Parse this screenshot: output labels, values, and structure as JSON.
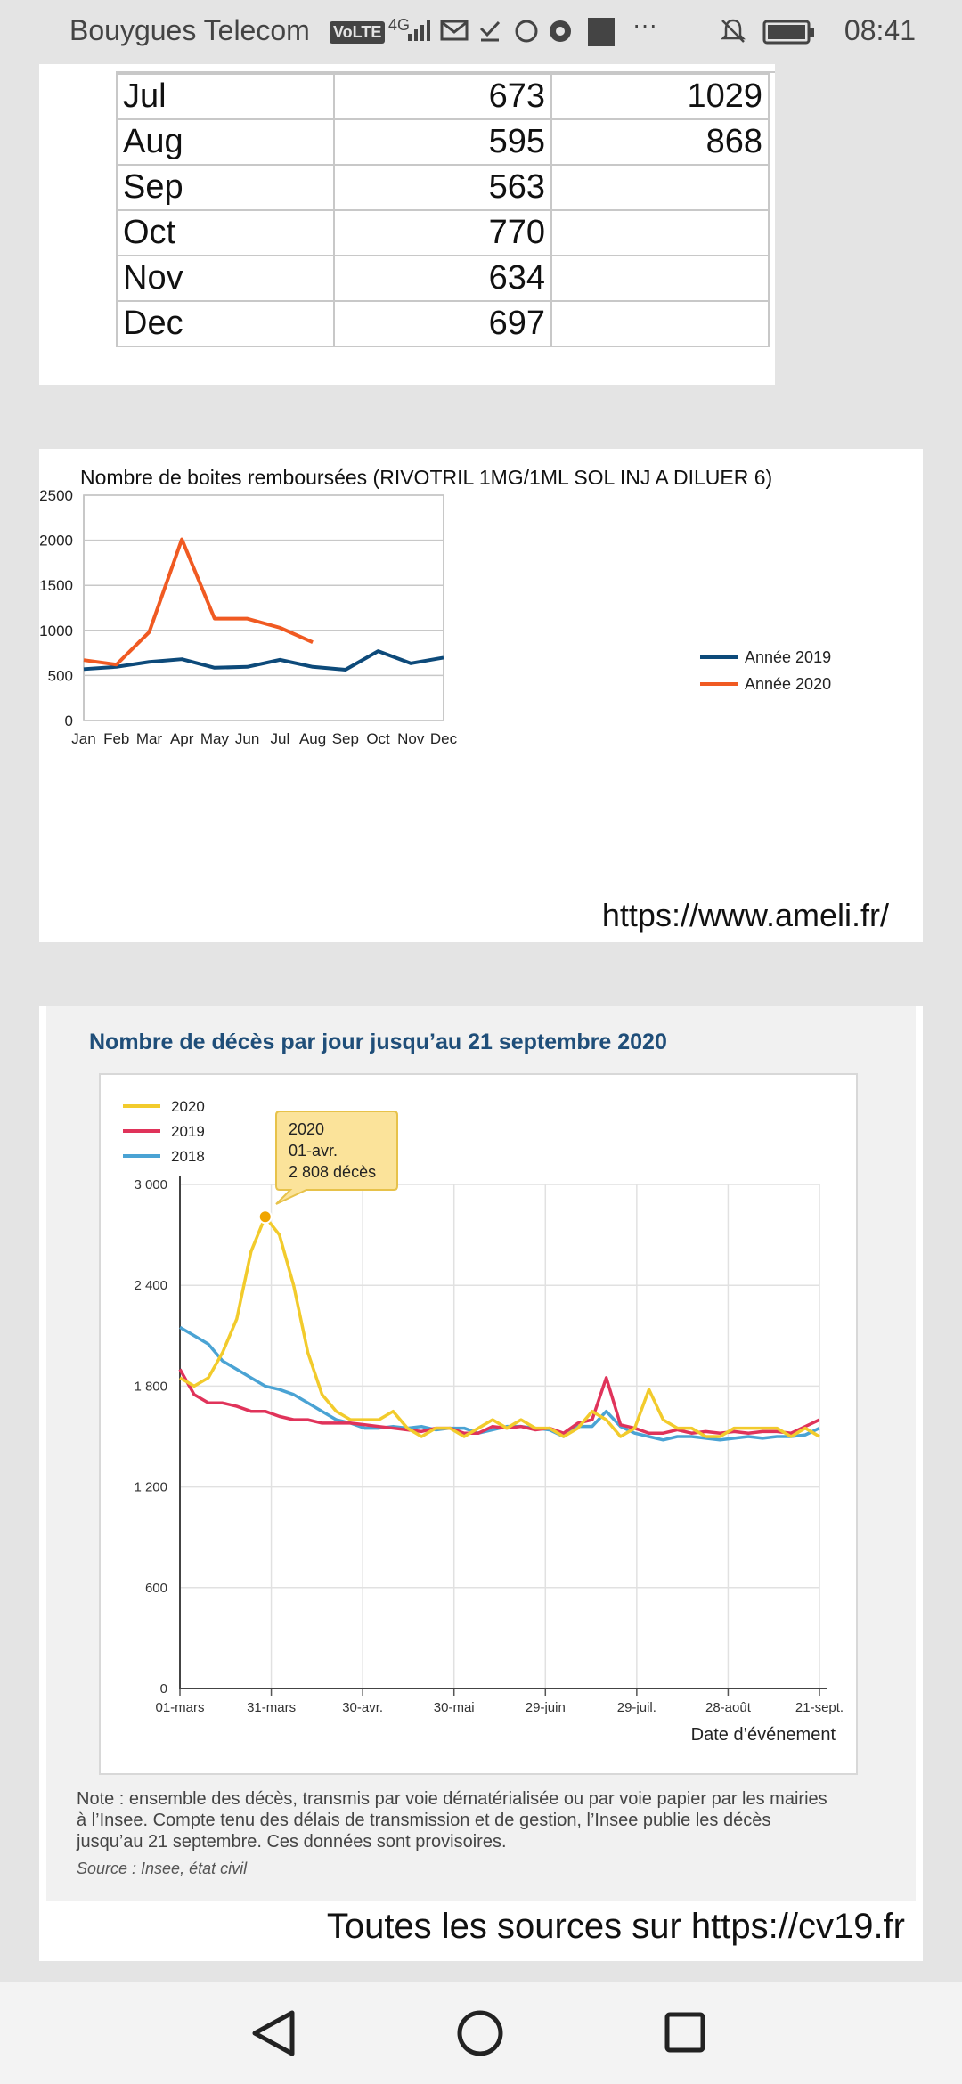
{
  "status": {
    "carrier": "Bouygues Telecom",
    "volte": "VoLTE",
    "network": "4G",
    "more": "···",
    "time": "08:41"
  },
  "table": {
    "rows": [
      {
        "month": "Jul",
        "v2019": "673",
        "v2020": "1029"
      },
      {
        "month": "Aug",
        "v2019": "595",
        "v2020": "868"
      },
      {
        "month": "Sep",
        "v2019": "563",
        "v2020": ""
      },
      {
        "month": "Oct",
        "v2019": "770",
        "v2020": ""
      },
      {
        "month": "Nov",
        "v2019": "634",
        "v2020": ""
      },
      {
        "month": "Dec",
        "v2019": "697",
        "v2020": ""
      }
    ]
  },
  "chart1": {
    "title": "Nombre de boites remboursées (RIVOTRIL 1MG/1ML SOL INJ A DILUER 6)",
    "source": "https://www.ameli.fr/"
  },
  "chart2": {
    "title": "Nombre de décès par jour jusqu’au 21 septembre 2020",
    "tooltip": [
      "2020",
      "01-avr.",
      "2 808 décès"
    ],
    "xlabel": "Date d’événement",
    "note": [
      "Note : ensemble des décès, transmis par voie dématérialisée ou par voie papier par les mairies",
      "à l’Insee. Compte tenu des délais de transmission et de gestion, l’Insee publie les décès",
      "jusqu’au 21 septembre. Ces données sont provisoires."
    ],
    "source": "Source : Insee, état civil"
  },
  "footer": {
    "text": "Toutes les sources sur https://cv19.fr"
  },
  "colors": {
    "blue2019": "#0d4a7a",
    "orange2020": "#f05a22",
    "yellow2020": "#f2cb2c",
    "red2019": "#e0335a",
    "blue2018": "#4aa3d4"
  },
  "chart_data": [
    {
      "type": "line",
      "title": "Nombre de boites remboursées (RIVOTRIL 1MG/1ML SOL INJ A DILUER 6)",
      "categories": [
        "Jan",
        "Feb",
        "Mar",
        "Apr",
        "May",
        "Jun",
        "Jul",
        "Aug",
        "Sep",
        "Oct",
        "Nov",
        "Dec"
      ],
      "ylim": [
        0,
        2500
      ],
      "yticks": [
        0,
        500,
        1000,
        1500,
        2000,
        2500
      ],
      "grid": true,
      "legend": "right",
      "series": [
        {
          "name": "Année 2019",
          "color": "#0d4a7a",
          "values": [
            570,
            595,
            650,
            680,
            585,
            595,
            673,
            595,
            563,
            770,
            634,
            697
          ]
        },
        {
          "name": "Année 2020",
          "color": "#f05a22",
          "values": [
            670,
            620,
            980,
            2010,
            1130,
            1130,
            1029,
            868,
            null,
            null,
            null,
            null
          ]
        }
      ]
    },
    {
      "type": "line",
      "title": "Nombre de décès par jour jusqu’au 21 septembre 2020",
      "xlabel": "Date d’événement",
      "x_ticks": [
        "01-mars",
        "31-mars",
        "30-avr.",
        "30-mai",
        "29-juin",
        "29-juil.",
        "28-août",
        "21-sept."
      ],
      "ylim": [
        0,
        3000
      ],
      "yticks": [
        "0",
        "600",
        "1 200",
        "1 800",
        "2 400",
        "3 000"
      ],
      "legend": "top-left",
      "series": [
        {
          "name": "2020",
          "color": "#f2cb2c",
          "values": [
            1850,
            1800,
            1850,
            2000,
            2200,
            2600,
            2808,
            2700,
            2400,
            2000,
            1750,
            1650,
            1600,
            1600,
            1600,
            1650,
            1550,
            1500,
            1550,
            1550,
            1500,
            1550,
            1600,
            1550,
            1600,
            1550,
            1550,
            1500,
            1550,
            1650,
            1600,
            1500,
            1550,
            1780,
            1600,
            1550,
            1550,
            1500,
            1500,
            1550,
            1550,
            1550,
            1550,
            1500,
            1550,
            1500
          ]
        },
        {
          "name": "2019",
          "color": "#e0335a",
          "values": [
            1900,
            1750,
            1700,
            1700,
            1680,
            1650,
            1650,
            1620,
            1600,
            1600,
            1580,
            1580,
            1580,
            1570,
            1560,
            1550,
            1540,
            1530,
            1550,
            1550,
            1520,
            1520,
            1560,
            1550,
            1560,
            1540,
            1550,
            1520,
            1580,
            1600,
            1850,
            1570,
            1550,
            1520,
            1520,
            1540,
            1520,
            1530,
            1520,
            1530,
            1520,
            1530,
            1530,
            1520,
            1560,
            1600
          ]
        },
        {
          "name": "2018",
          "color": "#4aa3d4",
          "values": [
            2150,
            2100,
            2050,
            1950,
            1900,
            1850,
            1800,
            1780,
            1750,
            1700,
            1650,
            1600,
            1580,
            1550,
            1550,
            1560,
            1550,
            1560,
            1540,
            1550,
            1550,
            1520,
            1540,
            1560,
            1560,
            1550,
            1540,
            1500,
            1560,
            1560,
            1650,
            1560,
            1520,
            1500,
            1480,
            1500,
            1500,
            1490,
            1480,
            1490,
            1500,
            1490,
            1500,
            1500,
            1510,
            1550
          ]
        }
      ],
      "annotation": {
        "series": "2020",
        "date": "01-avr.",
        "value": 2808
      }
    }
  ]
}
